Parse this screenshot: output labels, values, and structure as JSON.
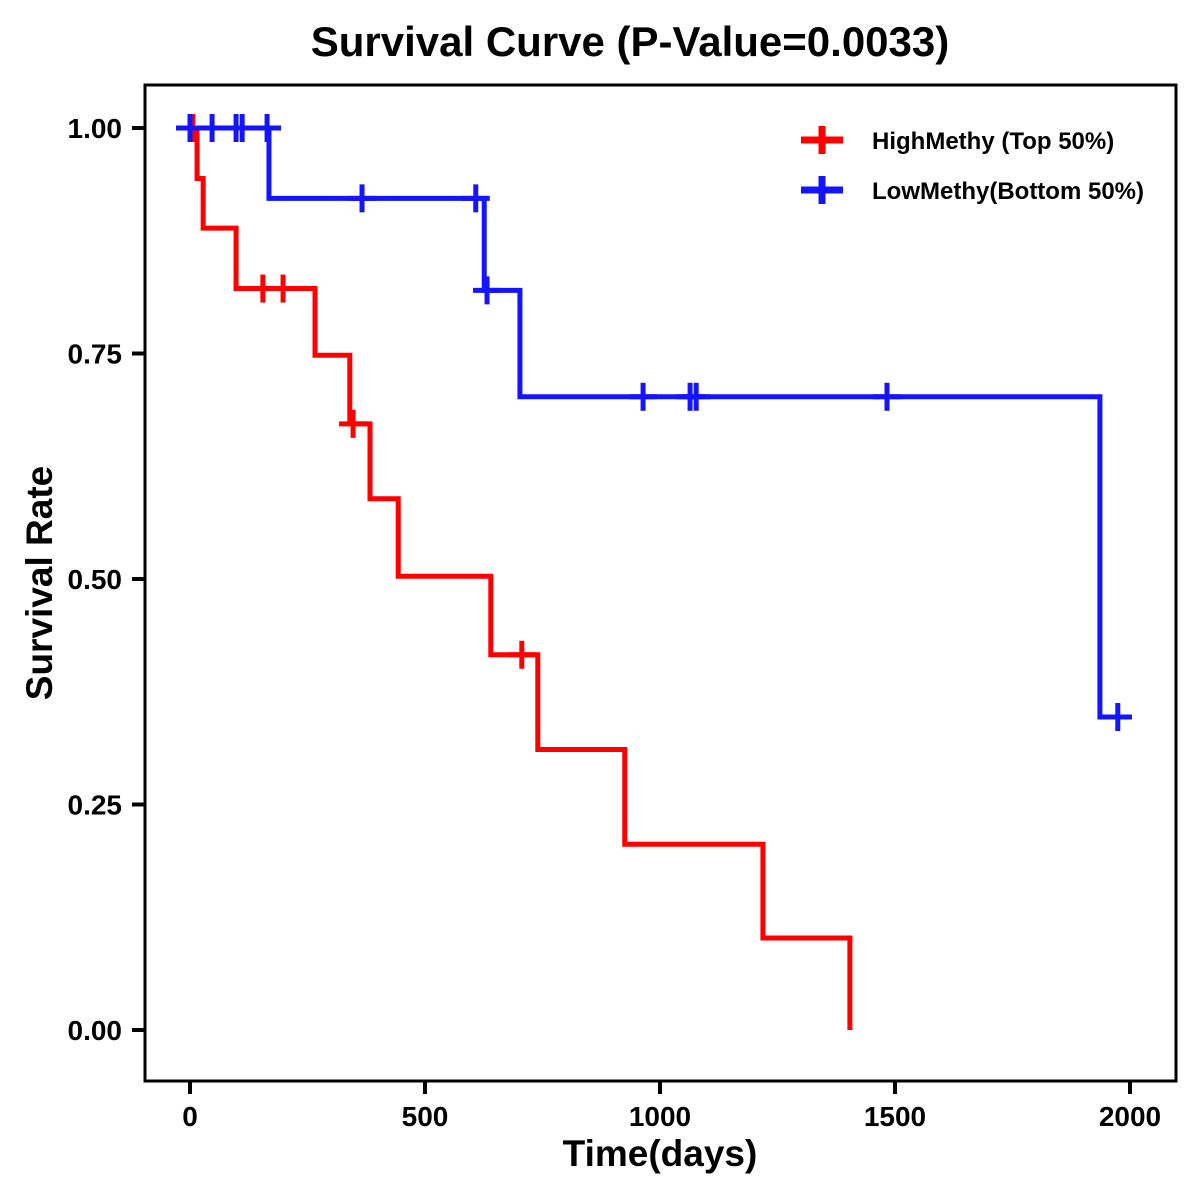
{
  "title": "Survival Curve (P-Value=0.0033)",
  "axes": {
    "x": {
      "label": "Time(days)",
      "ticks": [
        0,
        500,
        1000,
        1500,
        2000
      ],
      "tick_labels": [
        "0",
        "500",
        "1000",
        "1500",
        "2000"
      ]
    },
    "y": {
      "label": "Survival Rate",
      "ticks": [
        1.0,
        0.75,
        0.5,
        0.25,
        0.0
      ],
      "tick_labels": [
        "1.00",
        "0.75",
        "0.50",
        "0.25",
        "0.00"
      ]
    }
  },
  "legend": {
    "position": "top-right-inside",
    "items": [
      {
        "label": "HighMethy (Top 50%)",
        "color": "#ff0000",
        "marker": "plus"
      },
      {
        "label": "LowMethy(Bottom 50%)",
        "color": "#1414ff",
        "marker": "plus"
      }
    ]
  },
  "chart_data": {
    "type": "line",
    "subtype": "kaplan-meier-step",
    "title": "Survival Curve (P-Value=0.0033)",
    "p_value_text": "0.0033",
    "xlabel": "Time(days)",
    "ylabel": "Survival Rate",
    "xlim": [
      -95,
      2100
    ],
    "ylim": [
      -0.06,
      1.05
    ],
    "grid": false,
    "legend_position": "top-right",
    "series": [
      {
        "name": "HighMethy (Top 50%)",
        "color": "#ff0000",
        "start": [
          0,
          1.0
        ],
        "steps": [
          [
            15,
            0.944
          ],
          [
            28,
            0.889
          ],
          [
            98,
            0.822
          ],
          [
            266,
            0.748
          ],
          [
            340,
            0.672
          ],
          [
            383,
            0.589
          ],
          [
            443,
            0.503
          ],
          [
            640,
            0.416
          ],
          [
            740,
            0.311
          ],
          [
            925,
            0.206
          ],
          [
            1219,
            0.102
          ],
          [
            1404,
            0.0
          ]
        ],
        "end_time": 1404,
        "censors": [
          [
            6,
            1.0
          ],
          [
            155,
            0.822
          ],
          [
            198,
            0.822
          ],
          [
            347,
            0.672
          ],
          [
            706,
            0.416
          ]
        ]
      },
      {
        "name": "LowMethy(Bottom 50%)",
        "color": "#1414ff",
        "start": [
          0,
          1.0
        ],
        "steps": [
          [
            168,
            0.922
          ],
          [
            626,
            0.82
          ],
          [
            702,
            0.702
          ],
          [
            1936,
            0.347
          ]
        ],
        "end_time": 2004,
        "censors": [
          [
            0,
            1.0
          ],
          [
            47,
            1.0
          ],
          [
            98,
            1.0
          ],
          [
            111,
            1.0
          ],
          [
            164,
            1.0
          ],
          [
            366,
            0.922
          ],
          [
            608,
            0.922
          ],
          [
            632,
            0.82
          ],
          [
            964,
            0.702
          ],
          [
            1064,
            0.702
          ],
          [
            1077,
            0.702
          ],
          [
            1483,
            0.702
          ],
          [
            1974,
            0.347
          ]
        ]
      }
    ]
  }
}
